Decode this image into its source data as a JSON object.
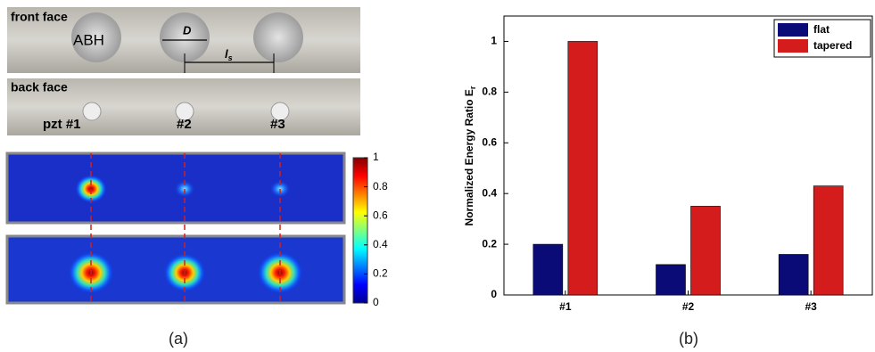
{
  "panel_a": {
    "front_label": "front face",
    "abh_label": "ABH",
    "d_label": "D",
    "ls_label": "l",
    "ls_sub": "s",
    "back_label": "back face",
    "pzt_labels": [
      "pzt #1",
      "#2",
      "#3"
    ],
    "colorbar": {
      "lim": [
        0,
        1
      ],
      "ticks": [
        0,
        0.2,
        0.4,
        0.6,
        0.8,
        1
      ]
    },
    "caption": "(a)"
  },
  "chart_data": {
    "type": "bar",
    "ylabel": "Normalized Energy Ratio E",
    "ylabel_sub": "r",
    "categories": [
      "#1",
      "#2",
      "#3"
    ],
    "series": [
      {
        "name": "flat",
        "color": "#0b0b78",
        "values": [
          0.2,
          0.12,
          0.16
        ]
      },
      {
        "name": "tapered",
        "color": "#d41c1c",
        "values": [
          1.0,
          0.35,
          0.43
        ]
      }
    ],
    "ylim": [
      0,
      1.1
    ],
    "yticks": [
      0,
      0.2,
      0.4,
      0.6,
      0.8,
      1
    ],
    "legend": "upper right",
    "caption": "(b)"
  }
}
